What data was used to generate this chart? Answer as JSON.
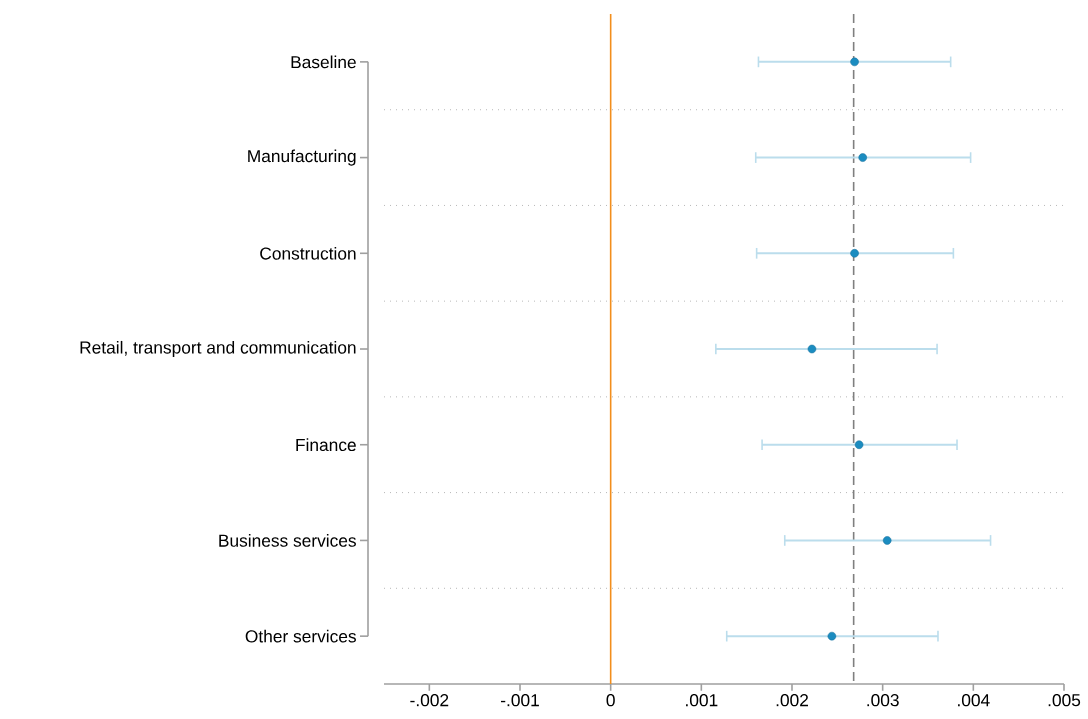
{
  "chart_data": {
    "type": "scatter",
    "orientation": "horizontal",
    "categories": [
      "Baseline",
      "Manufacturing",
      "Construction",
      "Retail, transport and communication",
      "Finance",
      "Business services",
      "Other services"
    ],
    "series": [
      {
        "color": "#1b8cc0",
        "values": [
          0.00269,
          0.00278,
          0.00269,
          0.00222,
          0.00274,
          0.00305,
          0.00244
        ],
        "errors": [
          [
            0.00163,
            0.00375
          ],
          [
            0.0016,
            0.00397
          ],
          [
            0.00161,
            0.00378
          ],
          [
            0.00116,
            0.0036
          ],
          [
            0.00167,
            0.00382
          ],
          [
            0.00192,
            0.00419
          ],
          [
            0.00128,
            0.00361
          ]
        ]
      }
    ],
    "marker": "circle",
    "xlim": [
      -0.0025,
      0.005
    ],
    "xticks": [
      {
        "value": -0.002,
        "label": "-.002"
      },
      {
        "value": -0.001,
        "label": "-.001"
      },
      0,
      {
        "value": 0.001,
        "label": ".001"
      },
      {
        "value": 0.002,
        "label": ".002"
      },
      {
        "value": 0.003,
        "label": ".003"
      },
      {
        "value": 0.004,
        "label": ".004"
      },
      {
        "value": 0.005,
        "label": ".005"
      }
    ],
    "grid": "y",
    "ref_lines": [
      {
        "axis": "x",
        "value": 0,
        "color": "#f28e1c",
        "line_style": "solid"
      },
      {
        "axis": "x",
        "value": 0.00268,
        "color": "#7f7f7f",
        "line_style": "dashed"
      }
    ]
  }
}
